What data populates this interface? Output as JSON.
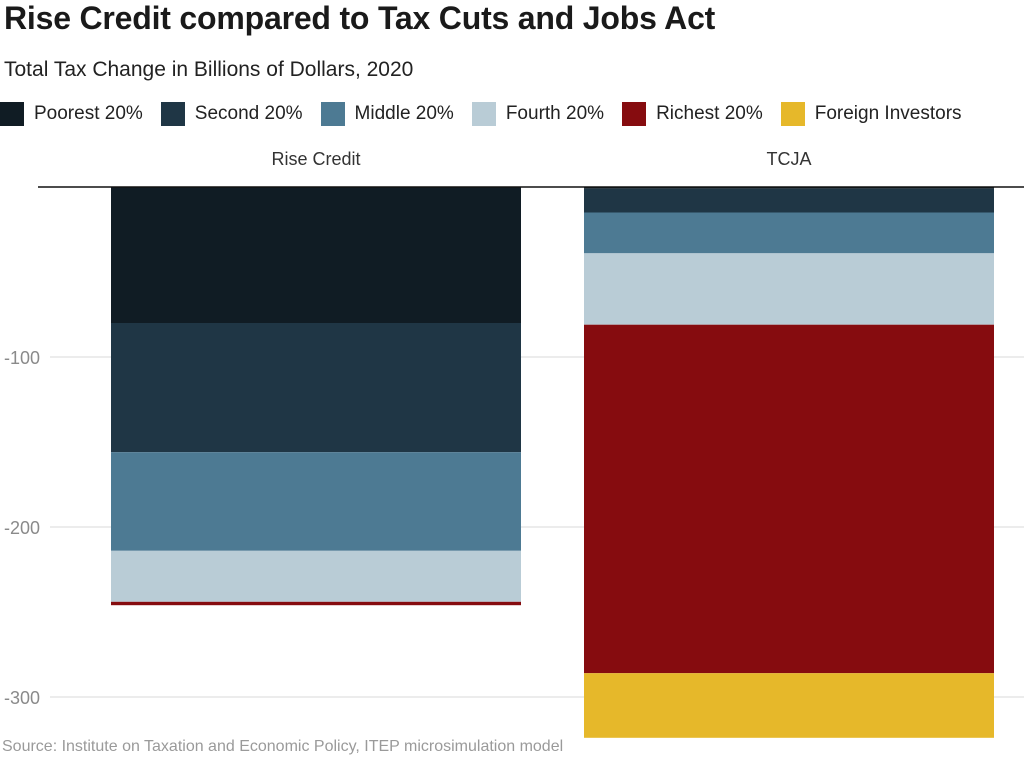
{
  "header": {
    "title": "Rise Credit compared to Tax Cuts and Jobs Act",
    "subtitle": "Total Tax Change in Billions of Dollars, 2020"
  },
  "chart_data": {
    "type": "bar",
    "stacked": true,
    "title": "Rise Credit compared to Tax Cuts and Jobs Act",
    "subtitle": "Total Tax Change in Billions of Dollars, 2020",
    "xlabel": "",
    "ylabel": "",
    "categories": [
      "Rise Credit",
      "TCJA"
    ],
    "ylim": [
      -325,
      0
    ],
    "yticks": [
      -100,
      -200,
      -300
    ],
    "grid": true,
    "legend_position": "top",
    "series": [
      {
        "name": "Poorest 20%",
        "color": "#101c24",
        "values": [
          -80,
          -1
        ]
      },
      {
        "name": "Second 20%",
        "color": "#1f3645",
        "values": [
          -76,
          -14
        ]
      },
      {
        "name": "Middle 20%",
        "color": "#4d7a93",
        "values": [
          -58,
          -24
        ]
      },
      {
        "name": "Fourth 20%",
        "color": "#b9ccd6",
        "values": [
          -30,
          -42
        ]
      },
      {
        "name": "Richest 20%",
        "color": "#860c0f",
        "values": [
          -2,
          -205
        ]
      },
      {
        "name": "Foreign Investors",
        "color": "#e6b82a",
        "values": [
          0,
          -38
        ]
      }
    ]
  },
  "footer": {
    "source": "Source: Institute on Taxation and Economic Policy, ITEP microsimulation model"
  }
}
